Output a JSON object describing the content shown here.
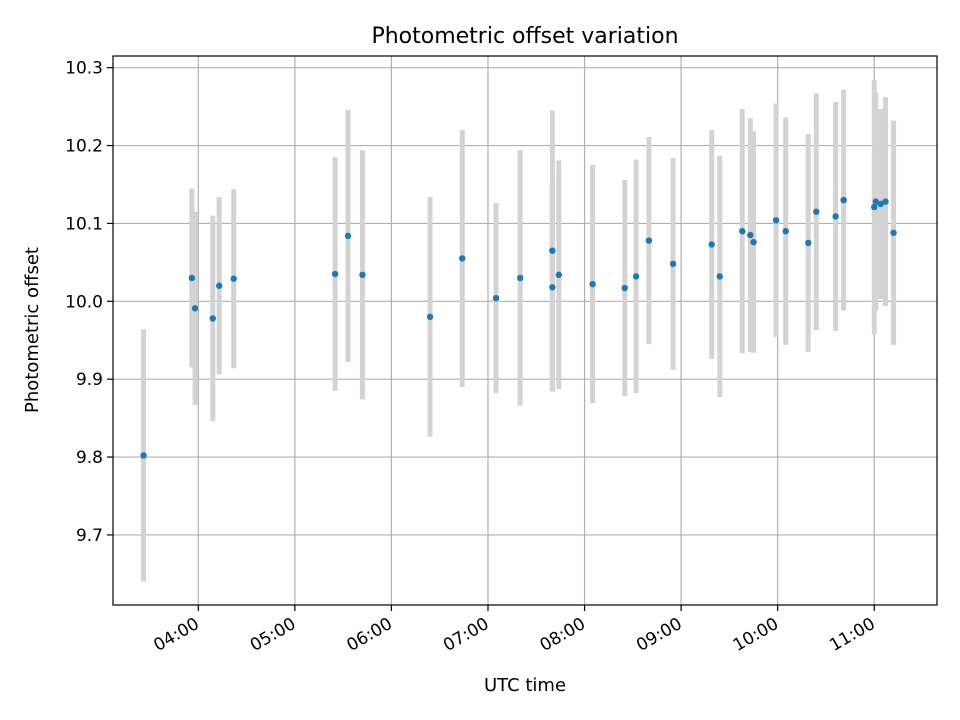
{
  "chart_data": {
    "type": "scatter",
    "title": "Photometric offset variation",
    "xlabel": "UTC time",
    "ylabel": "Photometric offset",
    "x_tick_labels": [
      "04:00",
      "05:00",
      "06:00",
      "07:00",
      "08:00",
      "09:00",
      "10:00",
      "11:00"
    ],
    "y_tick_labels": [
      "9.7",
      "9.8",
      "9.9",
      "10.0",
      "10.1",
      "10.2",
      "10.3"
    ],
    "y_ticks": [
      9.7,
      9.8,
      9.9,
      10.0,
      10.1,
      10.2,
      10.3
    ],
    "xlim": [
      "03:07",
      "11:39"
    ],
    "ylim": [
      9.61,
      10.315
    ],
    "grid": true,
    "colors": {
      "marker": "#1f77b4",
      "errorbar": "#d3d3d3",
      "grid": "#b0b0b0"
    },
    "series": [
      {
        "points": [
          {
            "x": "03:26",
            "y": 9.802,
            "yerr": 0.162
          },
          {
            "x": "03:56",
            "y": 10.03,
            "yerr": 0.115
          },
          {
            "x": "03:58",
            "y": 9.991,
            "yerr": 0.124
          },
          {
            "x": "04:09",
            "y": 9.978,
            "yerr": 0.132
          },
          {
            "x": "04:13",
            "y": 10.02,
            "yerr": 0.114
          },
          {
            "x": "04:22",
            "y": 10.029,
            "yerr": 0.115
          },
          {
            "x": "05:25",
            "y": 10.035,
            "yerr": 0.15
          },
          {
            "x": "05:33",
            "y": 10.084,
            "yerr": 0.162
          },
          {
            "x": "05:42",
            "y": 10.034,
            "yerr": 0.16
          },
          {
            "x": "06:24",
            "y": 9.98,
            "yerr": 0.154
          },
          {
            "x": "06:44",
            "y": 10.055,
            "yerr": 0.165
          },
          {
            "x": "07:05",
            "y": 10.004,
            "yerr": 0.122
          },
          {
            "x": "07:20",
            "y": 10.03,
            "yerr": 0.164
          },
          {
            "x": "07:40",
            "y": 10.065,
            "yerr": 0.18
          },
          {
            "x": "07:40",
            "y": 10.018,
            "yerr": 0.134
          },
          {
            "x": "07:44",
            "y": 10.034,
            "yerr": 0.147
          },
          {
            "x": "08:05",
            "y": 10.022,
            "yerr": 0.153
          },
          {
            "x": "08:25",
            "y": 10.017,
            "yerr": 0.139
          },
          {
            "x": "08:32",
            "y": 10.032,
            "yerr": 0.15
          },
          {
            "x": "08:40",
            "y": 10.078,
            "yerr": 0.133
          },
          {
            "x": "08:55",
            "y": 10.048,
            "yerr": 0.136
          },
          {
            "x": "09:19",
            "y": 10.073,
            "yerr": 0.147
          },
          {
            "x": "09:24",
            "y": 10.032,
            "yerr": 0.155
          },
          {
            "x": "09:38",
            "y": 10.09,
            "yerr": 0.157
          },
          {
            "x": "09:43",
            "y": 10.085,
            "yerr": 0.15
          },
          {
            "x": "09:45",
            "y": 10.076,
            "yerr": 0.142
          },
          {
            "x": "09:59",
            "y": 10.104,
            "yerr": 0.15
          },
          {
            "x": "10:05",
            "y": 10.09,
            "yerr": 0.146
          },
          {
            "x": "10:19",
            "y": 10.075,
            "yerr": 0.14
          },
          {
            "x": "10:24",
            "y": 10.115,
            "yerr": 0.152
          },
          {
            "x": "10:36",
            "y": 10.109,
            "yerr": 0.147
          },
          {
            "x": "10:41",
            "y": 10.13,
            "yerr": 0.142
          },
          {
            "x": "11:00",
            "y": 10.121,
            "yerr": 0.163
          },
          {
            "x": "11:01",
            "y": 10.128,
            "yerr": 0.14
          },
          {
            "x": "11:04",
            "y": 10.125,
            "yerr": 0.122
          },
          {
            "x": "11:07",
            "y": 10.128,
            "yerr": 0.134
          },
          {
            "x": "11:12",
            "y": 10.088,
            "yerr": 0.144
          }
        ]
      }
    ]
  }
}
